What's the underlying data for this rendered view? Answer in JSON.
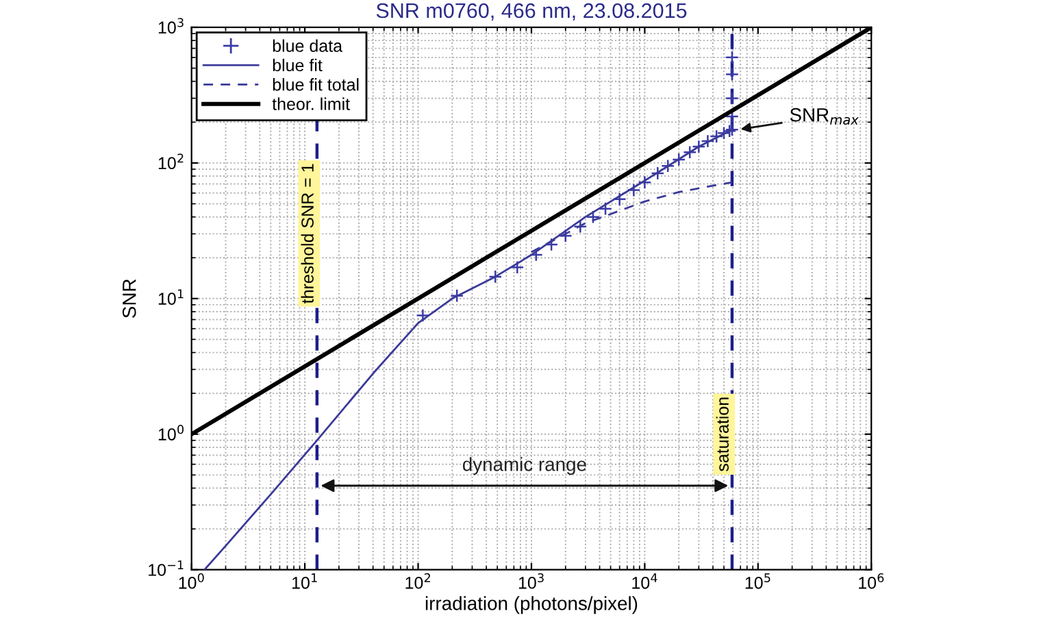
{
  "chart_data": {
    "type": "line",
    "title": "SNR m0760, 466 nm, 23.08.2015",
    "xlabel": "irradiation (photons/pixel)",
    "ylabel": "SNR",
    "log": "xy",
    "grid": true,
    "legend": "top left",
    "xlim": [
      1,
      1000000
    ],
    "ylim": [
      0.1,
      1000
    ],
    "xticks": [
      {
        "value": 1,
        "label": "10$^{0}$"
      },
      {
        "value": 10,
        "label": "10$^{1}$"
      },
      {
        "value": 100,
        "label": "10$^{2}$"
      },
      {
        "value": 1000,
        "label": "10$^{3}$"
      },
      {
        "value": 10000,
        "label": "10$^{4}$"
      },
      {
        "value": 100000,
        "label": "10$^{5}$"
      },
      {
        "value": 1000000,
        "label": "10$^{6}$"
      }
    ],
    "yticks": [
      {
        "value": 0.1,
        "label": "10$^{−1}$"
      },
      {
        "value": 1,
        "label": "10$^{0}$"
      },
      {
        "value": 10,
        "label": "10$^{1}$"
      },
      {
        "value": 100,
        "label": "10$^{2}$"
      },
      {
        "value": 1000,
        "label": "10$^{3}$"
      }
    ],
    "series": [
      {
        "name": "blue data",
        "type": "scatter",
        "marker": "cross",
        "color": "#3a3aa8",
        "x": [
          110,
          220,
          480,
          750,
          1100,
          1500,
          2000,
          2700,
          3500,
          4500,
          6000,
          8000,
          10000,
          13000,
          16000,
          20000,
          25000,
          30000,
          36000,
          43000,
          50000,
          56000,
          59000,
          59000,
          59000,
          59000,
          59000
        ],
        "values": [
          7.5,
          10.5,
          14.5,
          17,
          21,
          25,
          29,
          34,
          40,
          46,
          54,
          63,
          72,
          84,
          95,
          106,
          120,
          132,
          145,
          157,
          166,
          172,
          176,
          220,
          300,
          450,
          600
        ]
      },
      {
        "name": "blue fit",
        "line_style": "solid",
        "color": "#3a3a98",
        "x": [
          1.3,
          2,
          5,
          12.8,
          40,
          100,
          200,
          480,
          1000,
          3000,
          10000,
          30000,
          59000
        ],
        "values": [
          0.1,
          0.15,
          0.36,
          0.9,
          2.8,
          6.6,
          10,
          14.5,
          21,
          40,
          74,
          132,
          176
        ]
      },
      {
        "name": "blue fit total",
        "line_style": "dashed",
        "color": "#3a3a98",
        "x": [
          1000,
          3000,
          5000,
          10000,
          20000,
          40000,
          59000
        ],
        "values": [
          22,
          36,
          42,
          52,
          61,
          68,
          72
        ]
      },
      {
        "name": "theor. limit",
        "line_style": "solid",
        "color": "#000000",
        "x": [
          1,
          1000000
        ],
        "values": [
          1,
          1000
        ]
      }
    ],
    "ref_lines": [
      {
        "axis": "x",
        "value": 12.8,
        "color": "#1e1e8c",
        "line_style": "dashed"
      },
      {
        "axis": "x",
        "value": 59000,
        "label": "saturation",
        "color": "#1e1e8c",
        "line_style": "dashed"
      }
    ],
    "annotations": [
      "dynamic range",
      {
        "text": "SNR$_{max}$",
        "x": 59000,
        "y": 176
      },
      "threshold SNR = 1"
    ]
  }
}
